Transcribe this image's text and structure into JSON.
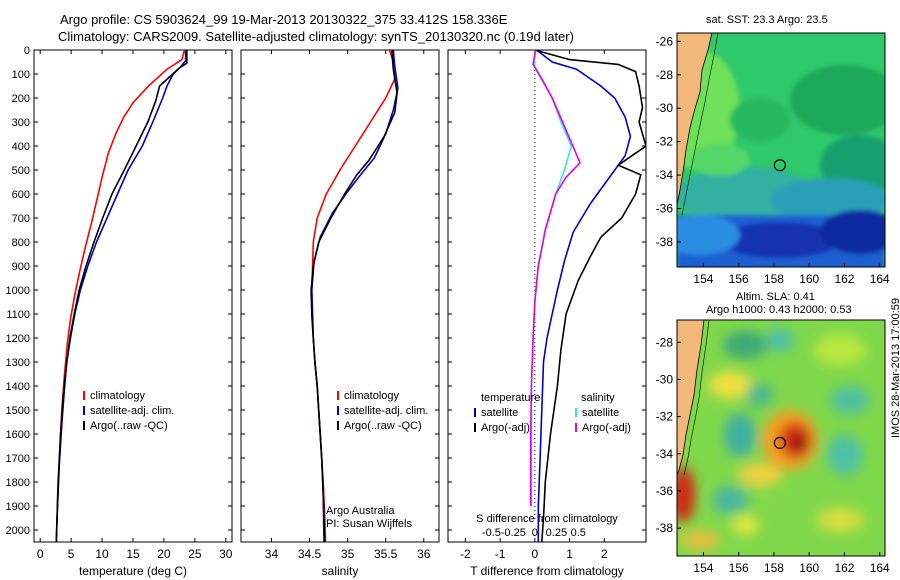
{
  "titles": {
    "line1": "Argo profile: CS 5903624_99 19-Mar-2013 20130322_375 33.412S 158.336E",
    "line2": "Climatology: CARS2009. Satellite-adjusted climatology: synTS_20130320.nc (0.19d later)"
  },
  "side_label": "IMOS 28-Mar-2013 17:00:59",
  "colors": {
    "red": "#ff0000",
    "blue": "#0000cc",
    "black": "#000000",
    "cyan": "#33e6e6",
    "magenta": "#e600e6"
  },
  "chart_data": [
    {
      "type": "line",
      "id": "temperature",
      "xlabel": "temperature (deg C)",
      "xlim": [
        -1,
        31
      ],
      "ylim": [
        0,
        2050
      ],
      "xticks": [
        0,
        5,
        10,
        15,
        20,
        25,
        30
      ],
      "yticks": [
        0,
        100,
        200,
        300,
        400,
        500,
        600,
        700,
        800,
        900,
        1000,
        1100,
        1200,
        1300,
        1400,
        1500,
        1600,
        1700,
        1800,
        1900,
        2000
      ],
      "legend": [
        "climatology",
        "satellite-adj. clim.",
        "Argo(..raw -QC)"
      ],
      "series": [
        {
          "color": "red",
          "points": [
            [
              23.3,
              0
            ],
            [
              22.9,
              40
            ],
            [
              20.5,
              80
            ],
            [
              17.5,
              150
            ],
            [
              15.0,
              220
            ],
            [
              13.5,
              280
            ],
            [
              12.2,
              350
            ],
            [
              11.0,
              430
            ],
            [
              10.1,
              520
            ],
            [
              9.2,
              620
            ],
            [
              8.3,
              720
            ],
            [
              7.3,
              820
            ],
            [
              6.4,
              920
            ],
            [
              5.6,
              1020
            ],
            [
              4.9,
              1120
            ],
            [
              4.4,
              1220
            ],
            [
              3.9,
              1360
            ],
            [
              3.5,
              1500
            ],
            [
              3.1,
              1700
            ],
            [
              2.8,
              1900
            ],
            [
              2.6,
              2050
            ]
          ]
        },
        {
          "color": "blue",
          "points": [
            [
              23.5,
              0
            ],
            [
              23.5,
              45
            ],
            [
              22.7,
              70
            ],
            [
              21.5,
              100
            ],
            [
              20.5,
              150
            ],
            [
              19.8,
              200
            ],
            [
              18.2,
              300
            ],
            [
              16.5,
              400
            ],
            [
              14.2,
              500
            ],
            [
              12.5,
              600
            ],
            [
              10.8,
              700
            ],
            [
              9.1,
              800
            ],
            [
              7.7,
              900
            ],
            [
              6.5,
              1000
            ],
            [
              5.6,
              1100
            ],
            [
              4.9,
              1200
            ],
            [
              4.3,
              1300
            ],
            [
              3.9,
              1420
            ],
            [
              3.5,
              1560
            ],
            [
              3.1,
              1720
            ],
            [
              2.8,
              1900
            ],
            [
              2.6,
              2050
            ]
          ]
        },
        {
          "color": "black",
          "points": [
            [
              23.7,
              0
            ],
            [
              23.7,
              55
            ],
            [
              22.5,
              75
            ],
            [
              21.0,
              110
            ],
            [
              19.3,
              150
            ],
            [
              18.7,
              210
            ],
            [
              17.4,
              300
            ],
            [
              15.5,
              400
            ],
            [
              13.6,
              500
            ],
            [
              11.6,
              600
            ],
            [
              10.1,
              700
            ],
            [
              8.7,
              800
            ],
            [
              7.4,
              900
            ],
            [
              6.3,
              1000
            ],
            [
              5.5,
              1100
            ],
            [
              4.8,
              1200
            ],
            [
              4.2,
              1320
            ],
            [
              3.7,
              1450
            ],
            [
              3.3,
              1600
            ],
            [
              2.9,
              1800
            ],
            [
              2.6,
              2050
            ]
          ]
        }
      ]
    },
    {
      "type": "line",
      "id": "salinity",
      "xlabel": "salinity",
      "xlim": [
        33.6,
        36.2
      ],
      "ylim": [
        0,
        2050
      ],
      "xticks": [
        34,
        34.5,
        35,
        35.5,
        36
      ],
      "legend": [
        "climatology",
        "satellite-adj. clim.",
        "Argo(..raw -QC)"
      ],
      "annotation": [
        "Argo Australia",
        "PI: Susan Wijffels"
      ],
      "series": [
        {
          "color": "red",
          "points": [
            [
              35.55,
              0
            ],
            [
              35.6,
              50
            ],
            [
              35.62,
              120
            ],
            [
              35.5,
              200
            ],
            [
              35.3,
              300
            ],
            [
              35.1,
              400
            ],
            [
              34.9,
              500
            ],
            [
              34.72,
              600
            ],
            [
              34.6,
              700
            ],
            [
              34.55,
              800
            ],
            [
              34.54,
              900
            ],
            [
              34.53,
              1000
            ],
            [
              34.53,
              1100
            ],
            [
              34.55,
              1200
            ],
            [
              34.57,
              1300
            ],
            [
              34.6,
              1400
            ],
            [
              34.62,
              1500
            ],
            [
              34.64,
              1600
            ],
            [
              34.66,
              1700
            ],
            [
              34.68,
              1800
            ],
            [
              34.7,
              1950
            ],
            [
              34.71,
              2050
            ]
          ]
        },
        {
          "color": "blue",
          "points": [
            [
              35.6,
              0
            ],
            [
              35.62,
              70
            ],
            [
              35.66,
              160
            ],
            [
              35.6,
              250
            ],
            [
              35.5,
              350
            ],
            [
              35.35,
              450
            ],
            [
              35.17,
              520
            ],
            [
              35.0,
              590
            ],
            [
              34.8,
              680
            ],
            [
              34.64,
              780
            ],
            [
              34.56,
              880
            ],
            [
              34.53,
              1000
            ],
            [
              34.54,
              1100
            ],
            [
              34.55,
              1200
            ],
            [
              34.57,
              1300
            ],
            [
              34.6,
              1400
            ],
            [
              34.62,
              1500
            ],
            [
              34.64,
              1600
            ],
            [
              34.66,
              1700
            ],
            [
              34.68,
              1850
            ],
            [
              34.69,
              2050
            ]
          ]
        },
        {
          "color": "black",
          "points": [
            [
              35.58,
              0
            ],
            [
              35.6,
              80
            ],
            [
              35.65,
              180
            ],
            [
              35.62,
              260
            ],
            [
              35.48,
              360
            ],
            [
              35.28,
              460
            ],
            [
              35.12,
              520
            ],
            [
              34.96,
              600
            ],
            [
              34.78,
              700
            ],
            [
              34.62,
              800
            ],
            [
              34.55,
              900
            ],
            [
              34.52,
              1000
            ],
            [
              34.53,
              1100
            ],
            [
              34.55,
              1200
            ],
            [
              34.57,
              1300
            ],
            [
              34.6,
              1400
            ],
            [
              34.62,
              1500
            ],
            [
              34.64,
              1600
            ],
            [
              34.66,
              1700
            ],
            [
              34.68,
              1850
            ],
            [
              34.7,
              2050
            ]
          ]
        }
      ]
    },
    {
      "type": "line",
      "id": "differences",
      "xlabel": "T difference from climatology",
      "xlabel_top": "S difference from climatology",
      "xlim": [
        -2.5,
        3.2
      ],
      "ylim": [
        0,
        2050
      ],
      "xticks": [
        -2,
        -1,
        0,
        1,
        2
      ],
      "xticks_top_labels": [
        "-0.5",
        "-0.25",
        "0",
        "0.25",
        "0.5"
      ],
      "legend_t": {
        "title": "temperature",
        "entries": [
          "satellite",
          "Argo(-adj)"
        ]
      },
      "legend_s": {
        "title": "salinity",
        "entries": [
          "satellite",
          "Argo(-adj)"
        ]
      },
      "series": [
        {
          "color": "blue",
          "points": [
            [
              0.05,
              0
            ],
            [
              0.5,
              50
            ],
            [
              1.2,
              80
            ],
            [
              1.9,
              150
            ],
            [
              2.3,
              200
            ],
            [
              2.6,
              280
            ],
            [
              2.75,
              360
            ],
            [
              2.6,
              440
            ],
            [
              2.1,
              540
            ],
            [
              1.6,
              640
            ],
            [
              1.1,
              760
            ],
            [
              0.85,
              880
            ],
            [
              0.65,
              1000
            ],
            [
              0.5,
              1100
            ],
            [
              0.35,
              1200
            ],
            [
              0.25,
              1300
            ],
            [
              0.2,
              1500
            ],
            [
              0.15,
              1700
            ],
            [
              0.1,
              1900
            ],
            [
              0.1,
              2050
            ]
          ]
        },
        {
          "color": "black",
          "points": [
            [
              0.0,
              0
            ],
            [
              1.0,
              40
            ],
            [
              2.4,
              60
            ],
            [
              2.9,
              90
            ],
            [
              3.0,
              150
            ],
            [
              3.1,
              240
            ],
            [
              3.0,
              300
            ],
            [
              3.2,
              400
            ],
            [
              2.4,
              480
            ],
            [
              3.05,
              520
            ],
            [
              2.9,
              600
            ],
            [
              2.5,
              700
            ],
            [
              1.9,
              780
            ],
            [
              1.6,
              860
            ],
            [
              1.25,
              960
            ],
            [
              0.9,
              1100
            ],
            [
              0.75,
              1250
            ],
            [
              0.65,
              1400
            ],
            [
              0.45,
              1600
            ],
            [
              0.3,
              1800
            ],
            [
              0.25,
              1950
            ],
            [
              0.2,
              2050
            ]
          ]
        },
        {
          "color": "cyan",
          "points": [
            [
              0.02,
              0
            ],
            [
              -0.02,
              60
            ],
            [
              0.1,
              100
            ],
            [
              0.3,
              150
            ],
            [
              0.5,
              200
            ],
            [
              0.75,
              300
            ],
            [
              1.05,
              400
            ],
            [
              0.85,
              500
            ],
            [
              0.6,
              600
            ],
            [
              0.3,
              750
            ],
            [
              0.1,
              900
            ],
            [
              0.0,
              1050
            ],
            [
              -0.05,
              1200
            ],
            [
              -0.1,
              1400
            ],
            [
              -0.1,
              1600
            ],
            [
              -0.1,
              1800
            ],
            [
              -0.1,
              1900
            ]
          ]
        },
        {
          "color": "magenta",
          "points": [
            [
              0.02,
              0
            ],
            [
              -0.05,
              60
            ],
            [
              0.2,
              120
            ],
            [
              0.5,
              200
            ],
            [
              0.8,
              300
            ],
            [
              1.3,
              470
            ],
            [
              0.9,
              530
            ],
            [
              0.6,
              600
            ],
            [
              0.3,
              750
            ],
            [
              0.1,
              900
            ],
            [
              0.0,
              1050
            ],
            [
              -0.05,
              1200
            ],
            [
              -0.1,
              1400
            ],
            [
              -0.12,
              1600
            ],
            [
              -0.12,
              1900
            ]
          ]
        }
      ]
    },
    {
      "type": "heatmap",
      "id": "sst_map",
      "title": "sat. SST: 23.3  Argo: 23.5",
      "xticks": [
        154,
        156,
        158,
        160,
        162,
        164
      ],
      "yticks": [
        -26,
        -28,
        -30,
        -32,
        -34,
        -36,
        -38
      ],
      "xlim": [
        152.5,
        164.3
      ],
      "ylim": [
        -39.5,
        -25.5
      ],
      "marker": [
        158.336,
        -33.412
      ]
    },
    {
      "type": "heatmap",
      "id": "sla_map",
      "title": [
        "Altim. SLA: 0.41",
        "Argo h1000: 0.43  h2000: 0.53"
      ],
      "xticks": [
        154,
        156,
        158,
        160,
        162,
        164
      ],
      "yticks": [
        -28,
        -30,
        -32,
        -34,
        -36,
        -38
      ],
      "xlim": [
        152.5,
        164.3
      ],
      "ylim": [
        -39.5,
        -26.8
      ],
      "marker": [
        158.336,
        -33.412
      ]
    }
  ]
}
